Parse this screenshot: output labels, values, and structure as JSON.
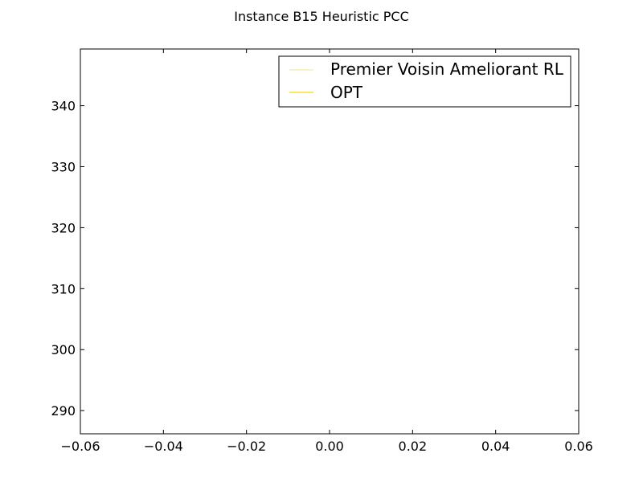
{
  "chart_data": {
    "type": "line",
    "title": "Instance B15 Heuristic PCC",
    "xlabel": "",
    "ylabel": "",
    "xlim": [
      -0.06,
      0.06
    ],
    "ylim": [
      286.2,
      349.3
    ],
    "x_ticks": [
      -0.06,
      -0.04,
      -0.02,
      0.0,
      0.02,
      0.04,
      0.06
    ],
    "x_tick_labels": [
      "−0.06",
      "−0.04",
      "−0.02",
      "0.00",
      "0.02",
      "0.04",
      "0.06"
    ],
    "y_ticks": [
      290,
      300,
      310,
      320,
      330,
      340
    ],
    "y_tick_labels": [
      "290",
      "300",
      "310",
      "320",
      "330",
      "340"
    ],
    "grid": false,
    "legend_position": "top-right",
    "series": [
      {
        "name": "Premier Voisin Ameliorant RL",
        "color": "#f0e68c",
        "x": [],
        "y": []
      },
      {
        "name": "OPT",
        "color": "#ffd700",
        "x": [],
        "y": []
      }
    ]
  }
}
